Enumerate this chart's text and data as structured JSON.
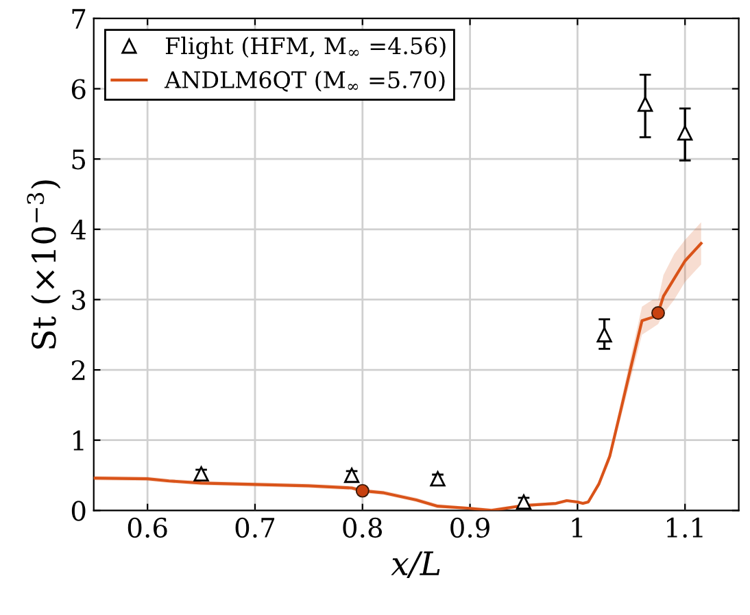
{
  "chart_data": {
    "type": "line",
    "xlabel": "x/L",
    "ylabel": "St (×10$^{−3}$)",
    "xlim": [
      0.55,
      1.15
    ],
    "xticks": [
      0.6,
      0.7,
      0.8,
      0.9,
      1,
      1.1
    ],
    "ylim": [
      0,
      7
    ],
    "yticks": [
      0,
      1,
      2,
      3,
      4,
      5,
      6,
      7
    ],
    "grid": true,
    "legend": "top left",
    "series": [
      {
        "name": "Flight (HFM, M$_{∞}$ =4.56)",
        "type": "scatter",
        "color": "#000000",
        "marker": "triangle",
        "x": [
          0.65,
          0.79,
          0.87,
          0.95,
          1.025,
          1.063,
          1.1
        ],
        "values": [
          0.52,
          0.5,
          0.45,
          0.12,
          2.5,
          5.78,
          5.37
        ],
        "errors": [
          0.06,
          0.06,
          0.06,
          0.06,
          [
            2.3,
            2.72
          ],
          [
            5.31,
            6.2
          ],
          [
            4.98,
            5.72
          ]
        ]
      },
      {
        "name": "ANDLM6QT (M$_{∞}$ =5.70)",
        "color": "#d95319",
        "x": [
          0.55,
          0.6,
          0.62,
          0.65,
          0.7,
          0.75,
          0.79,
          0.8,
          0.82,
          0.85,
          0.87,
          0.9,
          0.92,
          0.95,
          0.98,
          0.99,
          1.0,
          1.005,
          1.01,
          1.02,
          1.03,
          1.04,
          1.05,
          1.06,
          1.07,
          1.075,
          1.08,
          1.09,
          1.1,
          1.115
        ],
        "values": [
          0.46,
          0.45,
          0.42,
          0.39,
          0.37,
          0.35,
          0.32,
          0.28,
          0.25,
          0.15,
          0.06,
          0.03,
          0.0,
          0.07,
          0.1,
          0.14,
          0.12,
          0.1,
          0.12,
          0.38,
          0.77,
          1.41,
          2.06,
          2.7,
          2.75,
          2.81,
          3.05,
          3.3,
          3.55,
          3.8
        ],
        "lower": [
          0.43,
          0.42,
          0.39,
          0.36,
          0.34,
          0.32,
          0.29,
          0.25,
          0.22,
          0.12,
          0.03,
          0.01,
          0.0,
          0.05,
          0.08,
          0.12,
          0.1,
          0.08,
          0.1,
          0.34,
          0.7,
          1.3,
          1.9,
          2.5,
          2.6,
          2.65,
          2.8,
          3.0,
          3.25,
          3.5
        ],
        "upper": [
          0.49,
          0.48,
          0.45,
          0.42,
          0.4,
          0.38,
          0.35,
          0.31,
          0.28,
          0.18,
          0.09,
          0.05,
          0.03,
          0.09,
          0.12,
          0.16,
          0.14,
          0.12,
          0.14,
          0.42,
          0.84,
          1.52,
          2.22,
          2.9,
          3.0,
          3.0,
          3.35,
          3.65,
          3.85,
          4.1
        ]
      },
      {
        "type": "scatter",
        "color": "#c8410f",
        "marker": "circle",
        "x": [
          0.8,
          1.075
        ],
        "values": [
          0.28,
          2.81
        ]
      }
    ]
  }
}
